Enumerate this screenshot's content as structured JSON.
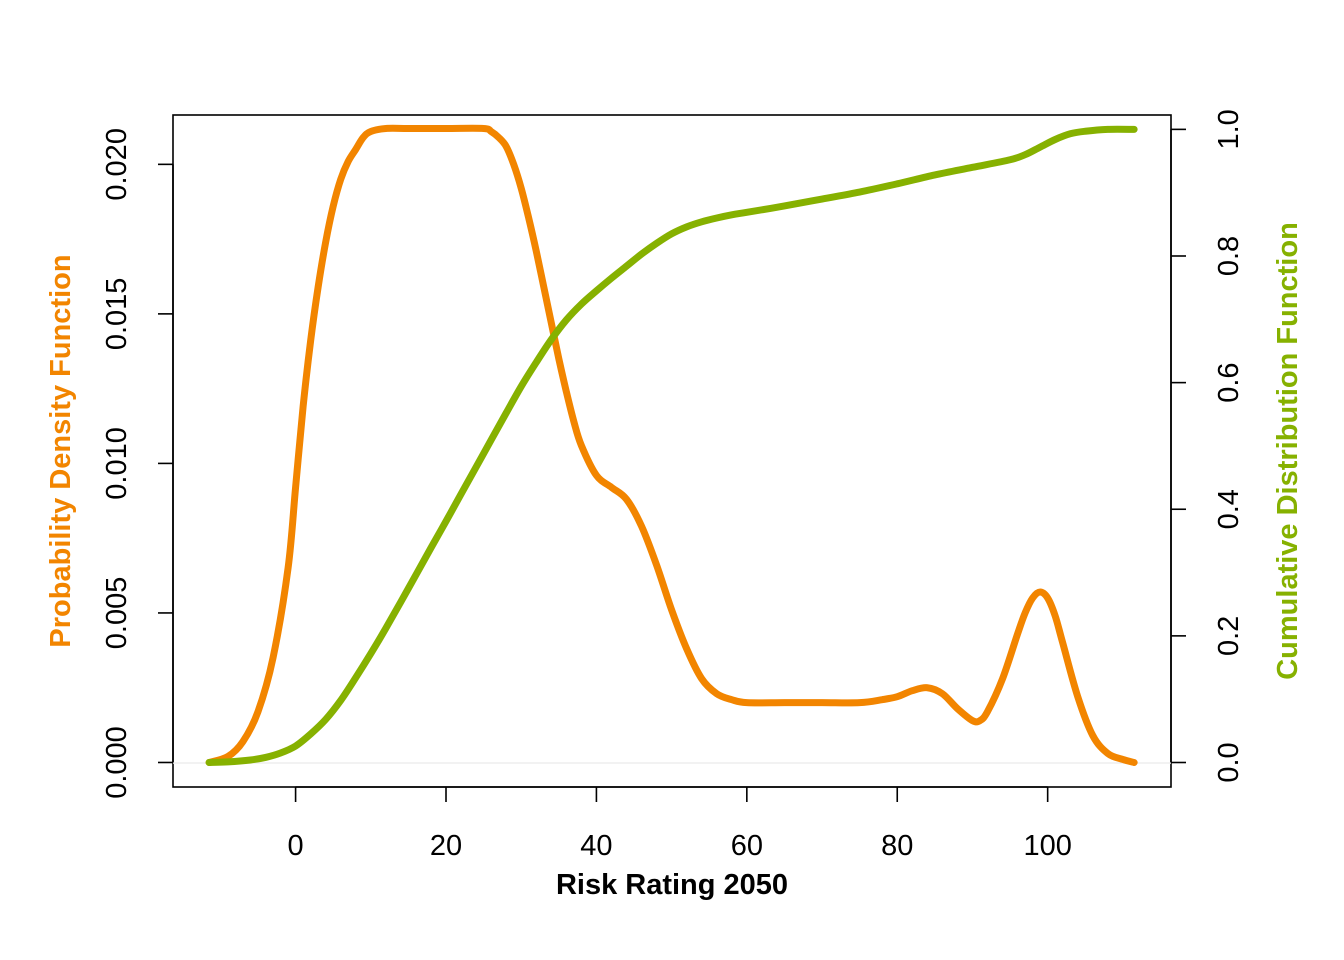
{
  "chart_data": {
    "type": "line",
    "xlabel": "Risk Rating 2050",
    "ylabel_left": "Probability Density Function",
    "ylabel_right": "Cumulative Distribution Function",
    "xlim": [
      -16.3,
      116.4
    ],
    "ylim_left": [
      -0.00082,
      0.02165
    ],
    "ylim_right": [
      -0.0387,
      1.0227
    ],
    "x_ticks": [
      0,
      20,
      40,
      60,
      80,
      100
    ],
    "y_left_ticks": [
      0.0,
      0.005,
      0.01,
      0.015,
      0.02
    ],
    "y_left_tick_labels": [
      "0.000",
      "0.005",
      "0.010",
      "0.015",
      "0.020"
    ],
    "y_right_ticks": [
      0.0,
      0.2,
      0.4,
      0.6,
      0.8,
      1.0
    ],
    "y_right_tick_labels": [
      "0.0",
      "0.2",
      "0.4",
      "0.6",
      "0.8",
      "1.0"
    ],
    "grid": false,
    "legend": "none",
    "colors": {
      "pdf": "#F28500",
      "cdf": "#86B100"
    },
    "series": [
      {
        "axis": "left",
        "color": "#F28500",
        "x": [
          -11.5,
          -9,
          -7,
          -5,
          -3,
          -1,
          0,
          1,
          2,
          3,
          4,
          5,
          6,
          7,
          8,
          9,
          10,
          12,
          15,
          20,
          25,
          26,
          27,
          28,
          29,
          30,
          31,
          32,
          33,
          34,
          35,
          36,
          37,
          38,
          40,
          42,
          44,
          46,
          48,
          50,
          52,
          54,
          56,
          58,
          60,
          65,
          70,
          75,
          78,
          80,
          82,
          84,
          86,
          88,
          90,
          91,
          92,
          94,
          96,
          97,
          98,
          99,
          100,
          101,
          102,
          104,
          106,
          108,
          110,
          111.5
        ],
        "y": [
          0.0,
          0.0002,
          0.0007,
          0.0017,
          0.0035,
          0.0065,
          0.0092,
          0.0119,
          0.0141,
          0.0159,
          0.0174,
          0.0186,
          0.0195,
          0.0201,
          0.0205,
          0.0209,
          0.0211,
          0.0212,
          0.0212,
          0.0212,
          0.0212,
          0.0211,
          0.0209,
          0.0206,
          0.02,
          0.0192,
          0.0182,
          0.0171,
          0.0159,
          0.0147,
          0.0135,
          0.0124,
          0.0114,
          0.0106,
          0.0096,
          0.0092,
          0.0088,
          0.0079,
          0.0066,
          0.0051,
          0.0038,
          0.0028,
          0.0023,
          0.0021,
          0.002,
          0.002,
          0.002,
          0.002,
          0.0021,
          0.0022,
          0.0024,
          0.0025,
          0.0023,
          0.0018,
          0.0014,
          0.0014,
          0.0017,
          0.0028,
          0.0043,
          0.005,
          0.0055,
          0.0057,
          0.0055,
          0.0049,
          0.004,
          0.0022,
          0.0009,
          0.0003,
          0.0001,
          0.0
        ]
      },
      {
        "axis": "right",
        "color": "#86B100",
        "x": [
          -11.5,
          -9,
          -6,
          -4,
          -2,
          0,
          2,
          4,
          6,
          8,
          10,
          12,
          15,
          18,
          20,
          22,
          25,
          28,
          30,
          32,
          34,
          36,
          38,
          40,
          42,
          44,
          46,
          48,
          50,
          52,
          54,
          56,
          58,
          60,
          65,
          70,
          75,
          80,
          85,
          90,
          95,
          97,
          99,
          101,
          103,
          105,
          108,
          111.5
        ],
        "y": [
          0.0,
          0.001,
          0.004,
          0.008,
          0.015,
          0.026,
          0.045,
          0.068,
          0.098,
          0.134,
          0.172,
          0.212,
          0.275,
          0.339,
          0.381,
          0.424,
          0.488,
          0.552,
          0.594,
          0.632,
          0.668,
          0.699,
          0.724,
          0.745,
          0.765,
          0.784,
          0.803,
          0.82,
          0.835,
          0.846,
          0.854,
          0.86,
          0.865,
          0.869,
          0.879,
          0.89,
          0.901,
          0.914,
          0.928,
          0.94,
          0.952,
          0.96,
          0.972,
          0.984,
          0.993,
          0.997,
          1.0,
          1.0
        ]
      }
    ]
  }
}
